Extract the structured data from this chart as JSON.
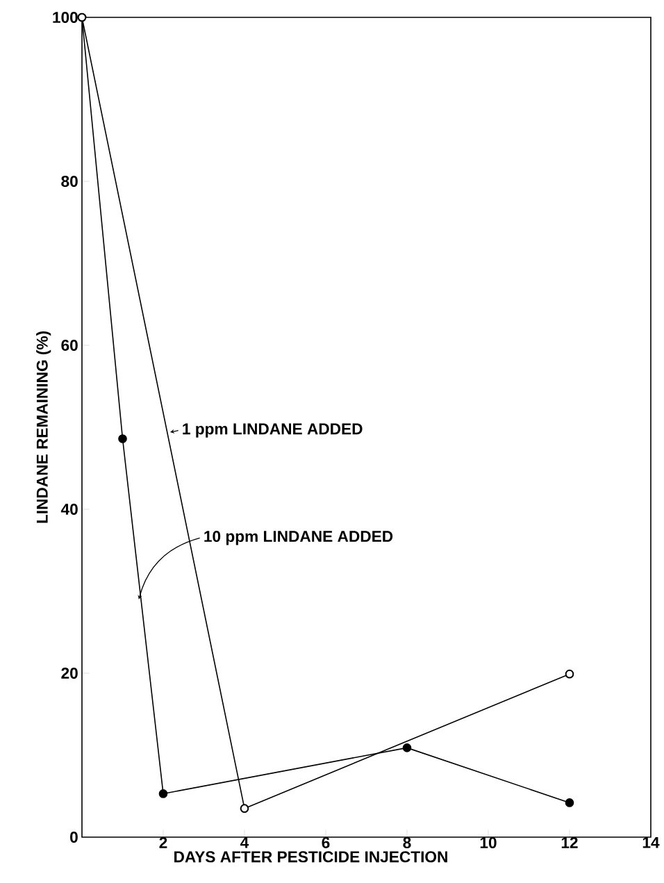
{
  "chart_data": {
    "type": "line",
    "xlabel": "DAYS AFTER PESTICIDE INJECTION",
    "ylabel": "LINDANE REMAINING (%)",
    "series": [
      {
        "color": "#000000",
        "x": [
          0,
          1,
          2,
          8,
          12
        ],
        "values": [
          100,
          48.6,
          5.3,
          10.9,
          4.2
        ]
      },
      {
        "color": "#000000",
        "x": [
          0,
          4,
          12
        ],
        "values": [
          100,
          3.5,
          19.9
        ]
      }
    ],
    "annotations": [
      {
        "text": "1 ppm **LINDANE ADDED**",
        "x": 2.17,
        "y": 49.4
      },
      {
        "text": "10 ppm **LINDANE ADDED**",
        "x": 1.4,
        "y": 29
      }
    ],
    "xlim": [
      0,
      14
    ],
    "ylim": [
      0,
      100
    ],
    "xticks": [
      2,
      4,
      6,
      8,
      10,
      12,
      14
    ],
    "yticks": [
      0,
      20,
      40,
      60,
      80,
      100
    ],
    "marker": "circle",
    "grid": false
  }
}
